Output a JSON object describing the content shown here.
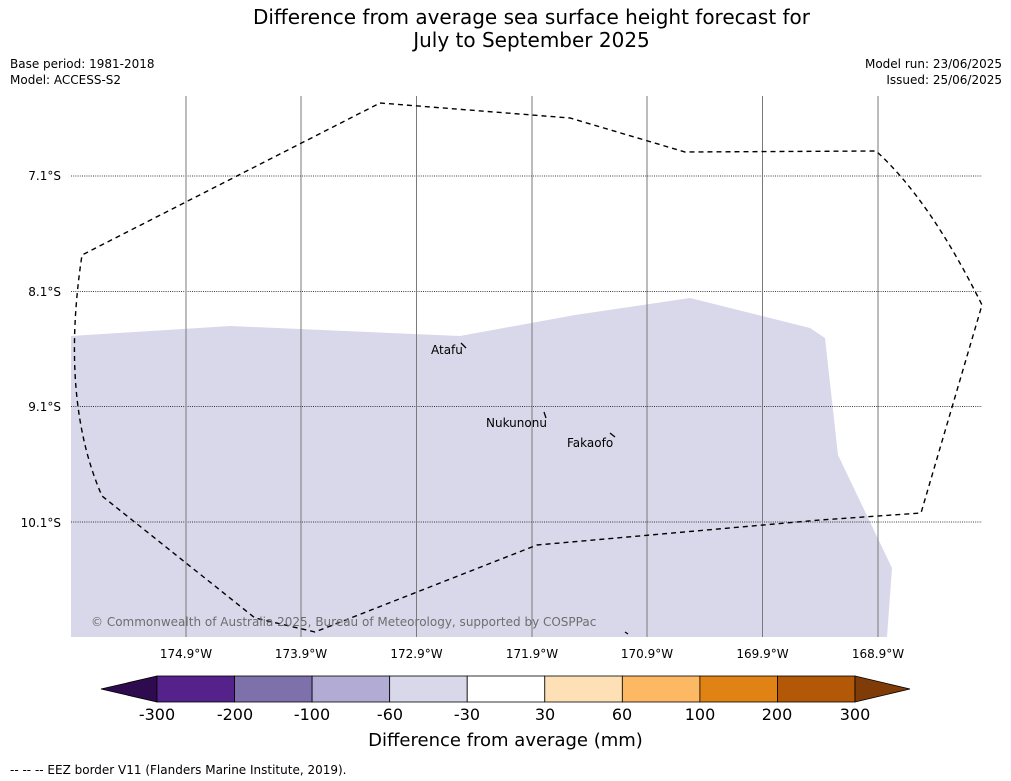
{
  "title": {
    "line1": "Difference from average sea surface height forecast for",
    "line2": "July to September 2025"
  },
  "meta_left": {
    "base_period": "Base period: 1981-2018",
    "model": "Model: ACCESS-S2"
  },
  "meta_right": {
    "model_run": "Model run: 23/06/2025",
    "issued": "Issued: 25/06/2025"
  },
  "map": {
    "lat_labels": [
      "7.1°S",
      "8.1°S",
      "9.1°S",
      "10.1°S"
    ],
    "lon_labels": [
      "174.9°W",
      "173.9°W",
      "172.9°W",
      "171.9°W",
      "170.9°W",
      "169.9°W",
      "168.9°W"
    ],
    "places": [
      "Atafu",
      "Nukunonu",
      "Fakaofo"
    ],
    "copyright": "© Commonwealth of Australia 2025, Bureau of Meteorology, supported by COSPPac",
    "anomaly_fill_color": "#d8d8ea",
    "anomaly_range_mm": [
      -60,
      -30
    ]
  },
  "colorbar": {
    "ticks": [
      "-300",
      "-200",
      "-100",
      "-60",
      "-30",
      "30",
      "60",
      "100",
      "200",
      "300"
    ],
    "colors": [
      "#2d0b4e",
      "#54228a",
      "#7e70ab",
      "#b2abd3",
      "#d8d8ea",
      "#ffffff",
      "#fee0b6",
      "#fdb863",
      "#e08214",
      "#b35806",
      "#7f3b08"
    ],
    "title": "Difference from average (mm)"
  },
  "footnote": "--  --  -- EEZ border V11 (Flanders Marine Institute, 2019)."
}
